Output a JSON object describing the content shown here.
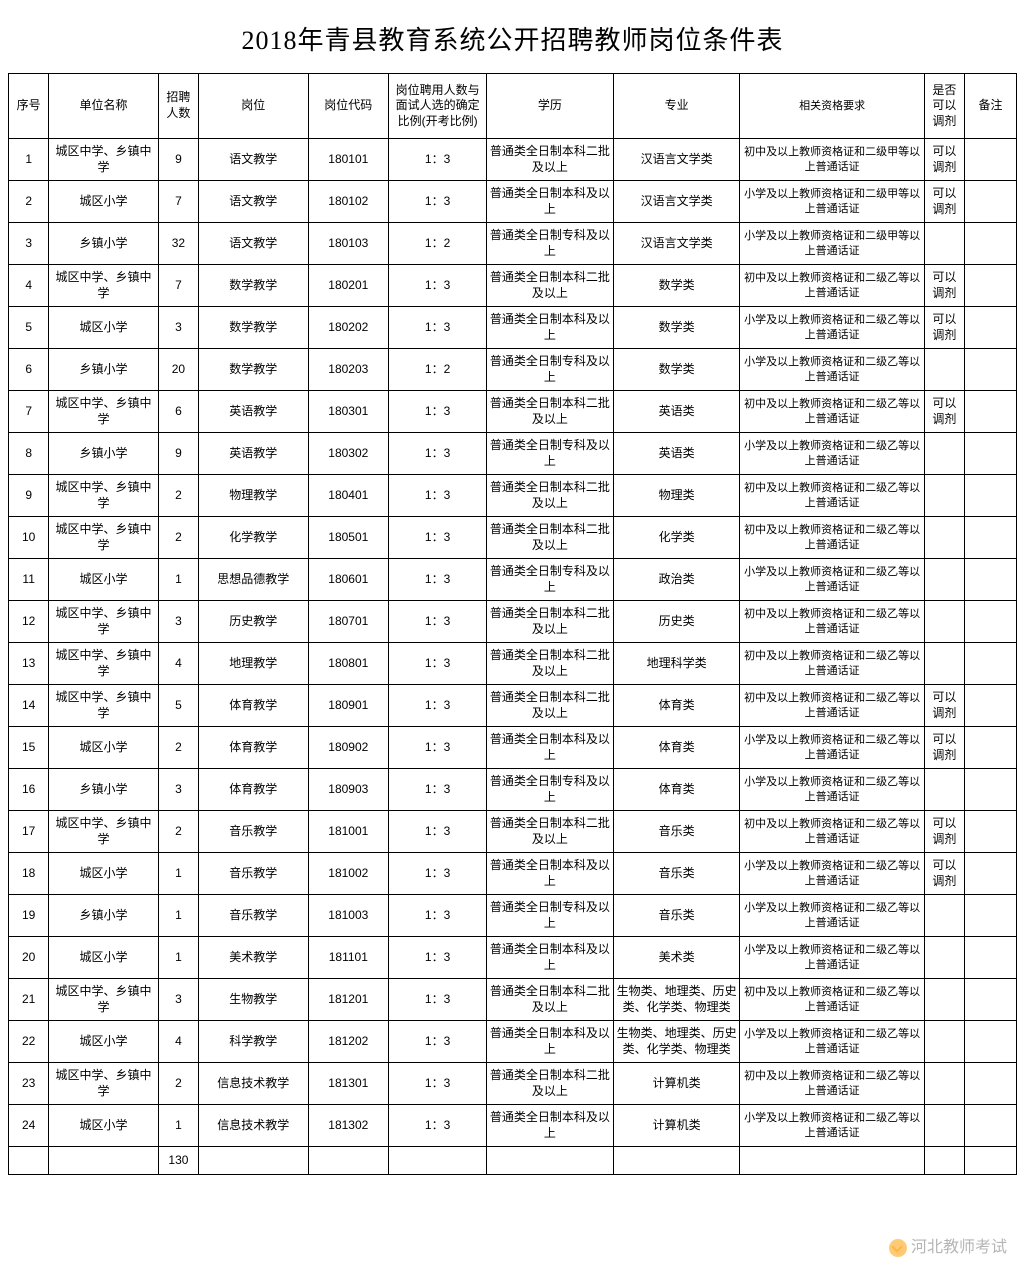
{
  "title": "2018年青县教育系统公开招聘教师岗位条件表",
  "watermark": "河北教师考试",
  "headers": {
    "seq": "序号",
    "unit": "单位名称",
    "count": "招聘人数",
    "position": "岗位",
    "code": "岗位代码",
    "ratio": "岗位聘用人数与面试人选的确定比例(开考比例)",
    "edu": "学历",
    "major": "专业",
    "req": "相关资格要求",
    "adjust": "是否可以调剂",
    "remark": "备注"
  },
  "total_label": "",
  "total_count": "130",
  "rows": [
    {
      "seq": "1",
      "unit": "城区中学、乡镇中学",
      "count": "9",
      "position": "语文教学",
      "code": "180101",
      "ratio": "1：3",
      "edu": "普通类全日制本科二批及以上",
      "major": "汉语言文学类",
      "req": "初中及以上教师资格证和二级甲等以上普通话证",
      "adjust": "可以调剂",
      "remark": ""
    },
    {
      "seq": "2",
      "unit": "城区小学",
      "count": "7",
      "position": "语文教学",
      "code": "180102",
      "ratio": "1：3",
      "edu": "普通类全日制本科及以上",
      "major": "汉语言文学类",
      "req": "小学及以上教师资格证和二级甲等以上普通话证",
      "adjust": "可以调剂",
      "remark": ""
    },
    {
      "seq": "3",
      "unit": "乡镇小学",
      "count": "32",
      "position": "语文教学",
      "code": "180103",
      "ratio": "1：2",
      "edu": "普通类全日制专科及以上",
      "major": "汉语言文学类",
      "req": "小学及以上教师资格证和二级甲等以上普通话证",
      "adjust": "",
      "remark": ""
    },
    {
      "seq": "4",
      "unit": "城区中学、乡镇中学",
      "count": "7",
      "position": "数学教学",
      "code": "180201",
      "ratio": "1：3",
      "edu": "普通类全日制本科二批及以上",
      "major": "数学类",
      "req": "初中及以上教师资格证和二级乙等以上普通话证",
      "adjust": "可以调剂",
      "remark": ""
    },
    {
      "seq": "5",
      "unit": "城区小学",
      "count": "3",
      "position": "数学教学",
      "code": "180202",
      "ratio": "1：3",
      "edu": "普通类全日制本科及以上",
      "major": "数学类",
      "req": "小学及以上教师资格证和二级乙等以上普通话证",
      "adjust": "可以调剂",
      "remark": ""
    },
    {
      "seq": "6",
      "unit": "乡镇小学",
      "count": "20",
      "position": "数学教学",
      "code": "180203",
      "ratio": "1：2",
      "edu": "普通类全日制专科及以上",
      "major": "数学类",
      "req": "小学及以上教师资格证和二级乙等以上普通话证",
      "adjust": "",
      "remark": ""
    },
    {
      "seq": "7",
      "unit": "城区中学、乡镇中学",
      "count": "6",
      "position": "英语教学",
      "code": "180301",
      "ratio": "1：3",
      "edu": "普通类全日制本科二批及以上",
      "major": "英语类",
      "req": "初中及以上教师资格证和二级乙等以上普通话证",
      "adjust": "可以调剂",
      "remark": ""
    },
    {
      "seq": "8",
      "unit": "乡镇小学",
      "count": "9",
      "position": "英语教学",
      "code": "180302",
      "ratio": "1：3",
      "edu": "普通类全日制专科及以上",
      "major": "英语类",
      "req": "小学及以上教师资格证和二级乙等以上普通话证",
      "adjust": "",
      "remark": ""
    },
    {
      "seq": "9",
      "unit": "城区中学、乡镇中学",
      "count": "2",
      "position": "物理教学",
      "code": "180401",
      "ratio": "1：3",
      "edu": "普通类全日制本科二批及以上",
      "major": "物理类",
      "req": "初中及以上教师资格证和二级乙等以上普通话证",
      "adjust": "",
      "remark": ""
    },
    {
      "seq": "10",
      "unit": "城区中学、乡镇中学",
      "count": "2",
      "position": "化学教学",
      "code": "180501",
      "ratio": "1：3",
      "edu": "普通类全日制本科二批及以上",
      "major": "化学类",
      "req": "初中及以上教师资格证和二级乙等以上普通话证",
      "adjust": "",
      "remark": ""
    },
    {
      "seq": "11",
      "unit": "城区小学",
      "count": "1",
      "position": "思想品德教学",
      "code": "180601",
      "ratio": "1：3",
      "edu": "普通类全日制专科及以上",
      "major": "政治类",
      "req": "小学及以上教师资格证和二级乙等以上普通话证",
      "adjust": "",
      "remark": ""
    },
    {
      "seq": "12",
      "unit": "城区中学、乡镇中学",
      "count": "3",
      "position": "历史教学",
      "code": "180701",
      "ratio": "1：3",
      "edu": "普通类全日制本科二批及以上",
      "major": "历史类",
      "req": "初中及以上教师资格证和二级乙等以上普通话证",
      "adjust": "",
      "remark": ""
    },
    {
      "seq": "13",
      "unit": "城区中学、乡镇中学",
      "count": "4",
      "position": "地理教学",
      "code": "180801",
      "ratio": "1：3",
      "edu": "普通类全日制本科二批及以上",
      "major": "地理科学类",
      "req": "初中及以上教师资格证和二级乙等以上普通话证",
      "adjust": "",
      "remark": ""
    },
    {
      "seq": "14",
      "unit": "城区中学、乡镇中学",
      "count": "5",
      "position": "体育教学",
      "code": "180901",
      "ratio": "1：3",
      "edu": "普通类全日制本科二批及以上",
      "major": "体育类",
      "req": "初中及以上教师资格证和二级乙等以上普通话证",
      "adjust": "可以调剂",
      "remark": ""
    },
    {
      "seq": "15",
      "unit": "城区小学",
      "count": "2",
      "position": "体育教学",
      "code": "180902",
      "ratio": "1：3",
      "edu": "普通类全日制本科及以上",
      "major": "体育类",
      "req": "小学及以上教师资格证和二级乙等以上普通话证",
      "adjust": "可以调剂",
      "remark": ""
    },
    {
      "seq": "16",
      "unit": "乡镇小学",
      "count": "3",
      "position": "体育教学",
      "code": "180903",
      "ratio": "1：3",
      "edu": "普通类全日制专科及以上",
      "major": "体育类",
      "req": "小学及以上教师资格证和二级乙等以上普通话证",
      "adjust": "",
      "remark": ""
    },
    {
      "seq": "17",
      "unit": "城区中学、乡镇中学",
      "count": "2",
      "position": "音乐教学",
      "code": "181001",
      "ratio": "1：3",
      "edu": "普通类全日制本科二批及以上",
      "major": "音乐类",
      "req": "初中及以上教师资格证和二级乙等以上普通话证",
      "adjust": "可以调剂",
      "remark": ""
    },
    {
      "seq": "18",
      "unit": "城区小学",
      "count": "1",
      "position": "音乐教学",
      "code": "181002",
      "ratio": "1：3",
      "edu": "普通类全日制本科及以上",
      "major": "音乐类",
      "req": "小学及以上教师资格证和二级乙等以上普通话证",
      "adjust": "可以调剂",
      "remark": ""
    },
    {
      "seq": "19",
      "unit": "乡镇小学",
      "count": "1",
      "position": "音乐教学",
      "code": "181003",
      "ratio": "1：3",
      "edu": "普通类全日制专科及以上",
      "major": "音乐类",
      "req": "小学及以上教师资格证和二级乙等以上普通话证",
      "adjust": "",
      "remark": ""
    },
    {
      "seq": "20",
      "unit": "城区小学",
      "count": "1",
      "position": "美术教学",
      "code": "181101",
      "ratio": "1：3",
      "edu": "普通类全日制本科及以上",
      "major": "美术类",
      "req": "小学及以上教师资格证和二级乙等以上普通话证",
      "adjust": "",
      "remark": ""
    },
    {
      "seq": "21",
      "unit": "城区中学、乡镇中学",
      "count": "3",
      "position": "生物教学",
      "code": "181201",
      "ratio": "1：3",
      "edu": "普通类全日制本科二批及以上",
      "major": "生物类、地理类、历史类、化学类、物理类",
      "req": "初中及以上教师资格证和二级乙等以上普通话证",
      "adjust": "",
      "remark": ""
    },
    {
      "seq": "22",
      "unit": "城区小学",
      "count": "4",
      "position": "科学教学",
      "code": "181202",
      "ratio": "1：3",
      "edu": "普通类全日制本科及以上",
      "major": "生物类、地理类、历史类、化学类、物理类",
      "req": "小学及以上教师资格证和二级乙等以上普通话证",
      "adjust": "",
      "remark": ""
    },
    {
      "seq": "23",
      "unit": "城区中学、乡镇中学",
      "count": "2",
      "position": "信息技术教学",
      "code": "181301",
      "ratio": "1：3",
      "edu": "普通类全日制本科二批及以上",
      "major": "计算机类",
      "req": "初中及以上教师资格证和二级乙等以上普通话证",
      "adjust": "",
      "remark": ""
    },
    {
      "seq": "24",
      "unit": "城区小学",
      "count": "1",
      "position": "信息技术教学",
      "code": "181302",
      "ratio": "1：3",
      "edu": "普通类全日制本科及以上",
      "major": "计算机类",
      "req": "小学及以上教师资格证和二级乙等以上普通话证",
      "adjust": "",
      "remark": ""
    }
  ]
}
